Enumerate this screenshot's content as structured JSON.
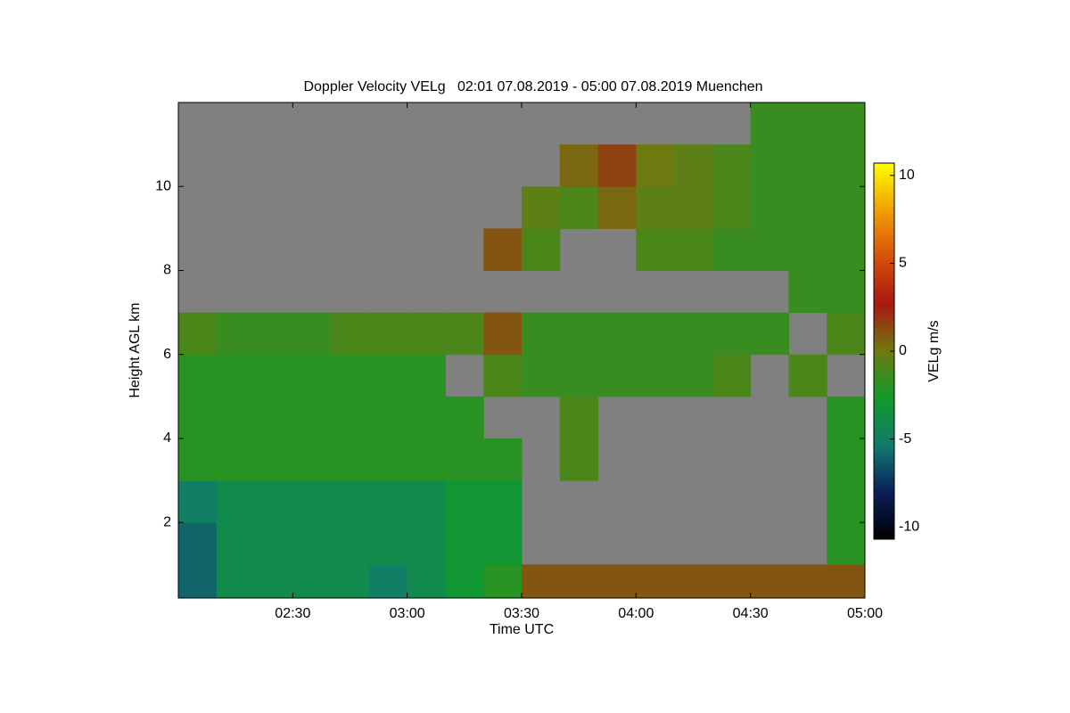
{
  "chart_data": {
    "type": "heatmap",
    "title": "Doppler Velocity VELg   02:01 07.08.2019 - 05:00 07.08.2019 Muenchen",
    "x_label": "Time UTC",
    "y_label": "Height AGL km",
    "colorbar_label": "VELg m/s",
    "xlim": [
      120,
      300
    ],
    "xticks": [
      {
        "value": 150,
        "label": "02:30"
      },
      {
        "value": 180,
        "label": "03:00"
      },
      {
        "value": 210,
        "label": "03:30"
      },
      {
        "value": 240,
        "label": "04:00"
      },
      {
        "value": 270,
        "label": "04:30"
      },
      {
        "value": 300,
        "label": "05:00"
      }
    ],
    "ylim": [
      0.2,
      12
    ],
    "yticks": [
      2,
      4,
      6,
      8,
      10
    ],
    "clim": [
      -10.7,
      10.7
    ],
    "cticks": [
      -10,
      -5,
      0,
      5,
      10
    ],
    "colormap": [
      "#000000",
      "#0a1f5c",
      "#127a6e",
      "#109a2a",
      "#6e7a10",
      "#a81810",
      "#d8500c",
      "#f0a000",
      "#ffff00"
    ],
    "no_data_color": "#808080",
    "time_bins": [
      120,
      130,
      140,
      150,
      160,
      170,
      180,
      190,
      200,
      210,
      220,
      230,
      240,
      250,
      260,
      270,
      280,
      290,
      300
    ],
    "height_bins": [
      0.2,
      1,
      2,
      3,
      4,
      5,
      6,
      7,
      8,
      9,
      10,
      11,
      12
    ],
    "values": [
      [
        -6,
        -4,
        -4,
        -4,
        -4,
        -5,
        -4,
        -3,
        -2,
        1,
        1,
        1,
        1,
        1,
        1,
        1,
        1,
        1
      ],
      [
        -6,
        -4,
        -4,
        -4,
        -4,
        -4,
        -4,
        -3,
        -3,
        null,
        null,
        null,
        null,
        null,
        null,
        null,
        null,
        -2
      ],
      [
        -5,
        -4,
        -4,
        -4,
        -4,
        -4,
        -4,
        -3,
        -3,
        null,
        null,
        null,
        null,
        null,
        null,
        null,
        null,
        -2
      ],
      [
        -2,
        -2,
        -2,
        -2,
        -2,
        -2,
        -2,
        -2,
        -2,
        null,
        -1,
        null,
        null,
        null,
        null,
        null,
        null,
        -2
      ],
      [
        -2,
        -2,
        -2,
        -2,
        -2,
        -2,
        -2,
        -2,
        null,
        null,
        -1,
        null,
        null,
        null,
        null,
        null,
        null,
        -2
      ],
      [
        -2,
        -2,
        -2,
        -2,
        -2,
        -2,
        -2,
        null,
        -1,
        -1.5,
        -1.5,
        -1.5,
        -1.5,
        -1.5,
        -1,
        null,
        -1,
        null
      ],
      [
        -1,
        -1.5,
        -1.5,
        -1.5,
        -1,
        -1,
        -1,
        -1,
        1,
        -1.5,
        -1.5,
        -1.5,
        -1.5,
        -1.5,
        -1.5,
        -1.5,
        null,
        -1
      ],
      [
        null,
        null,
        null,
        null,
        null,
        null,
        null,
        null,
        null,
        null,
        null,
        null,
        null,
        null,
        null,
        null,
        -1.5,
        -1.5
      ],
      [
        null,
        null,
        null,
        null,
        null,
        null,
        null,
        null,
        1,
        -1,
        null,
        null,
        -1,
        -1,
        -1.5,
        -1.5,
        -1.5,
        -1.5
      ],
      [
        null,
        null,
        null,
        null,
        null,
        null,
        null,
        null,
        null,
        -0.5,
        -1,
        0.5,
        -0.5,
        -0.5,
        -1,
        -1.5,
        -1.5,
        -1.5
      ],
      [
        null,
        null,
        null,
        null,
        null,
        null,
        null,
        null,
        null,
        null,
        0.5,
        1.5,
        0,
        -0.5,
        -1,
        -1.5,
        -1.5,
        -1.5
      ],
      [
        null,
        null,
        null,
        null,
        null,
        null,
        null,
        null,
        null,
        null,
        null,
        null,
        null,
        null,
        null,
        -1.5,
        -1.5,
        -1.5
      ]
    ]
  }
}
